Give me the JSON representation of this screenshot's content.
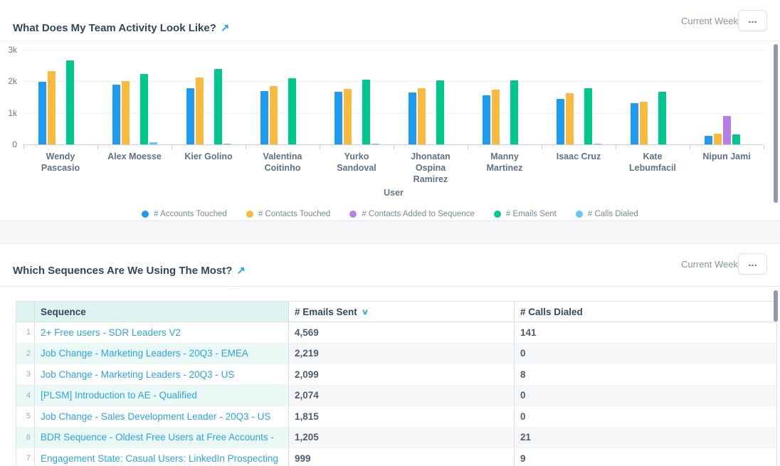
{
  "colors": {
    "link": "#2EA2E8",
    "title_text": "#33475B",
    "table_header_bg": "#DCF3EF",
    "row_tint_teal": "#EAF9F5",
    "row_tint_gray": "#F5F6F8",
    "accounts_touched": "#1E9AEE",
    "contacts_touched": "#F9BA3F",
    "contacts_added_to_sequence": "#B57FE6",
    "emails_sent": "#00C88C",
    "calls_dialed": "#67C4F4"
  },
  "icons": {
    "expand_arrow": "↗",
    "overflow_menu": "...",
    "sort_desc_chevron": "∨"
  },
  "activity": {
    "title": "What Does My Team Activity Look Like?",
    "timeframe": "Current Week"
  },
  "chart_data": {
    "type": "bar",
    "title": "What Does My Team Activity Look Like?",
    "xlabel": "User",
    "ylabel": "",
    "ylim": [
      0,
      3000
    ],
    "yticks": [
      "0",
      "1k",
      "2k",
      "3k"
    ],
    "grid": true,
    "legend_position": "bottom",
    "categories": [
      "Wendy Pascasio",
      "Alex Moesse",
      "Kier Golino",
      "Valentina Coitinho",
      "Yurko Sandoval",
      "Jhonatan Ospina Ramirez",
      "Manny Martinez",
      "Isaac Cruz",
      "Kate Lebumfacil",
      "Nipun Jami"
    ],
    "series": [
      {
        "name": "# Accounts Touched",
        "color": "#1E9AEE",
        "values": [
          1980,
          1900,
          1780,
          1700,
          1670,
          1650,
          1560,
          1450,
          1300,
          270
        ]
      },
      {
        "name": "# Contacts Touched",
        "color": "#F9BA3F",
        "values": [
          2330,
          2010,
          2110,
          1860,
          1760,
          1790,
          1730,
          1620,
          1350,
          330
        ]
      },
      {
        "name": "# Contacts Added to Sequence",
        "color": "#B57FE6",
        "values": [
          0,
          0,
          0,
          0,
          0,
          0,
          0,
          0,
          0,
          900
        ]
      },
      {
        "name": "# Emails Sent",
        "color": "#00C88C",
        "values": [
          2660,
          2230,
          2400,
          2100,
          2060,
          2030,
          2030,
          1780,
          1660,
          310
        ]
      },
      {
        "name": "# Calls Dialed",
        "color": "#67C4F4",
        "values": [
          0,
          60,
          25,
          0,
          30,
          0,
          0,
          30,
          0,
          0
        ]
      }
    ]
  },
  "sequences": {
    "title": "Which Sequences Are We Using The Most?",
    "timeframe": "Current Week",
    "table": {
      "columns": [
        {
          "label": "Sequence",
          "sorted": false
        },
        {
          "label": "# Emails Sent",
          "sorted": true
        },
        {
          "label": "# Calls Dialed",
          "sorted": false
        }
      ],
      "rows": [
        {
          "rank": "1",
          "sequence": "2+ Free users - SDR Leaders V2",
          "emails_sent": "4,569",
          "calls_dialed": "141"
        },
        {
          "rank": "2",
          "sequence": "Job Change - Marketing Leaders - 20Q3 - EMEA",
          "emails_sent": "2,219",
          "calls_dialed": "0"
        },
        {
          "rank": "3",
          "sequence": "Job Change - Marketing Leaders - 20Q3 - US",
          "emails_sent": "2,099",
          "calls_dialed": "8"
        },
        {
          "rank": "4",
          "sequence": "[PLSM] Introduction to AE - Qualified",
          "emails_sent": "2,074",
          "calls_dialed": "0"
        },
        {
          "rank": "5",
          "sequence": "Job Change - Sales Development Leader - 20Q3 - US",
          "emails_sent": "1,815",
          "calls_dialed": "0"
        },
        {
          "rank": "6",
          "sequence": "BDR Sequence - Oldest Free Users at Free Accounts - ",
          "emails_sent": "1,205",
          "calls_dialed": "21"
        },
        {
          "rank": "7",
          "sequence": "Engagement State: Casual Users: LinkedIn Prospecting",
          "emails_sent": "999",
          "calls_dialed": "9"
        }
      ]
    }
  }
}
